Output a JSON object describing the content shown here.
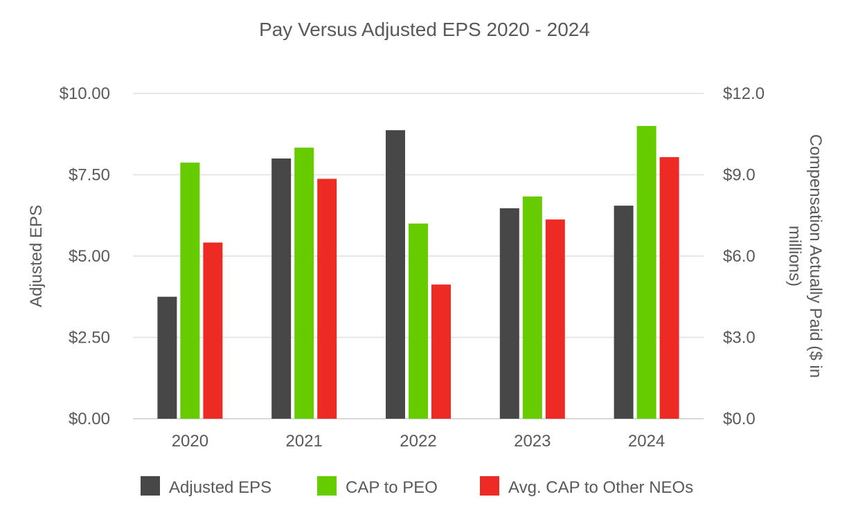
{
  "chart_data": {
    "type": "bar",
    "title": "Pay Versus Adjusted EPS 2020 - 2024",
    "categories": [
      "2020",
      "2021",
      "2022",
      "2023",
      "2024"
    ],
    "y_left": {
      "label": "Adjusted EPS",
      "lim": [
        0,
        10
      ],
      "ticks": [
        0,
        2.5,
        5,
        7.5,
        10
      ],
      "tick_labels": [
        "$0.00",
        "$2.50",
        "$5.00",
        "$7.50",
        "$10.00"
      ]
    },
    "y_right": {
      "label_lines": [
        "Compensation Actually Paid ($ in",
        "millions)"
      ],
      "lim": [
        0,
        12
      ],
      "ticks": [
        0,
        3,
        6,
        9,
        12
      ],
      "tick_labels": [
        "$0.0",
        "$3.0",
        "$6.0",
        "$9.0",
        "$12.0"
      ]
    },
    "series": [
      {
        "name": "Adjusted EPS",
        "axis": "left",
        "color": "#474747",
        "values": [
          3.75,
          8.0,
          8.87,
          6.47,
          6.55
        ]
      },
      {
        "name": "CAP to PEO",
        "axis": "right",
        "color": "#66cc00",
        "values": [
          9.45,
          10.0,
          7.2,
          8.2,
          10.8
        ]
      },
      {
        "name": "Avg. CAP to Other NEOs",
        "axis": "right",
        "color": "#ee2a24",
        "values": [
          6.5,
          8.85,
          4.95,
          7.35,
          9.65
        ]
      }
    ],
    "grid": true,
    "legend": "bottom"
  }
}
